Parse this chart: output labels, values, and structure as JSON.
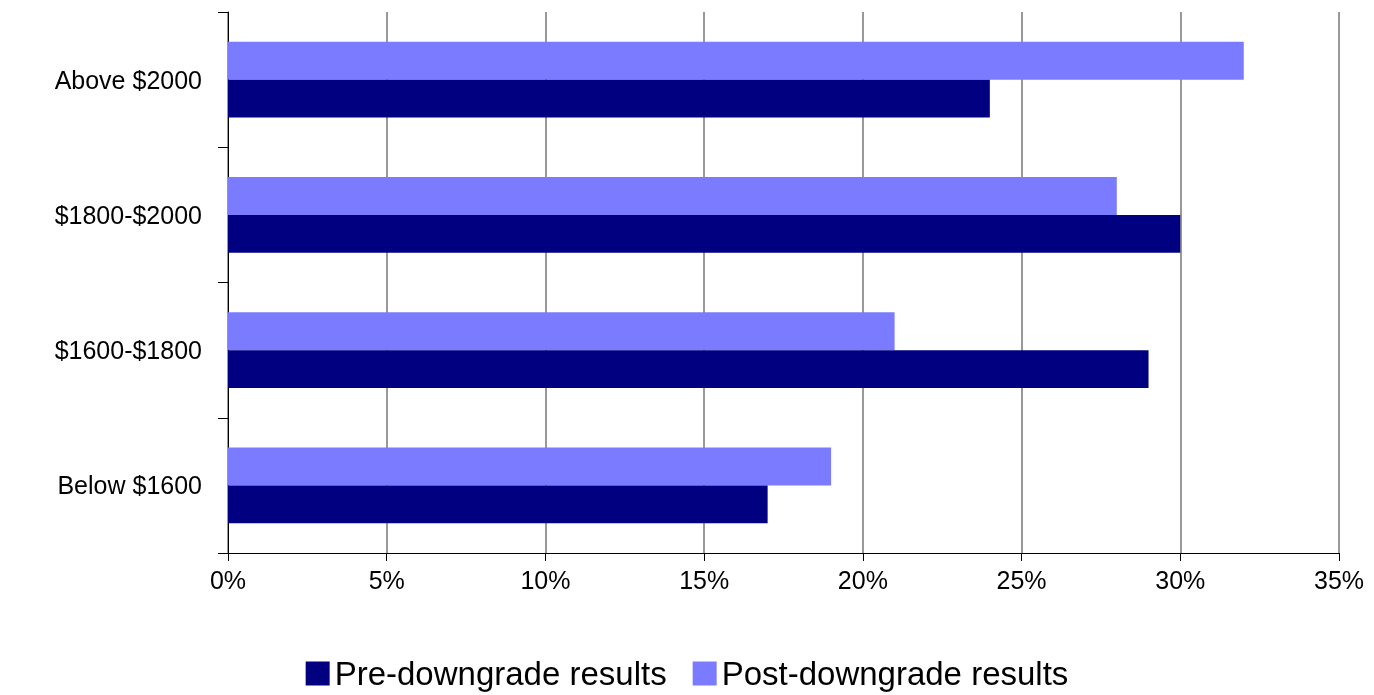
{
  "chart_data": {
    "type": "bar",
    "orientation": "horizontal",
    "categories": [
      "Above $2000",
      "$1800-$2000",
      "$1600-$1800",
      "Below $1600"
    ],
    "series": [
      {
        "name": "Pre-downgrade results",
        "color": "#000080",
        "values": [
          24,
          30,
          29,
          17
        ]
      },
      {
        "name": "Post-downgrade results",
        "color": "#7b7bff",
        "values": [
          32,
          28,
          21,
          19
        ]
      }
    ],
    "xlim": [
      0,
      35
    ],
    "xticks": [
      {
        "value": 0,
        "label": "0%"
      },
      {
        "value": 5,
        "label": "5%"
      },
      {
        "value": 10,
        "label": "10%"
      },
      {
        "value": 15,
        "label": "15%"
      },
      {
        "value": 20,
        "label": "20%"
      },
      {
        "value": 25,
        "label": "25%"
      },
      {
        "value": 30,
        "label": "30%"
      },
      {
        "value": 35,
        "label": "35%"
      }
    ],
    "grid": "x",
    "legend": "bottom"
  }
}
